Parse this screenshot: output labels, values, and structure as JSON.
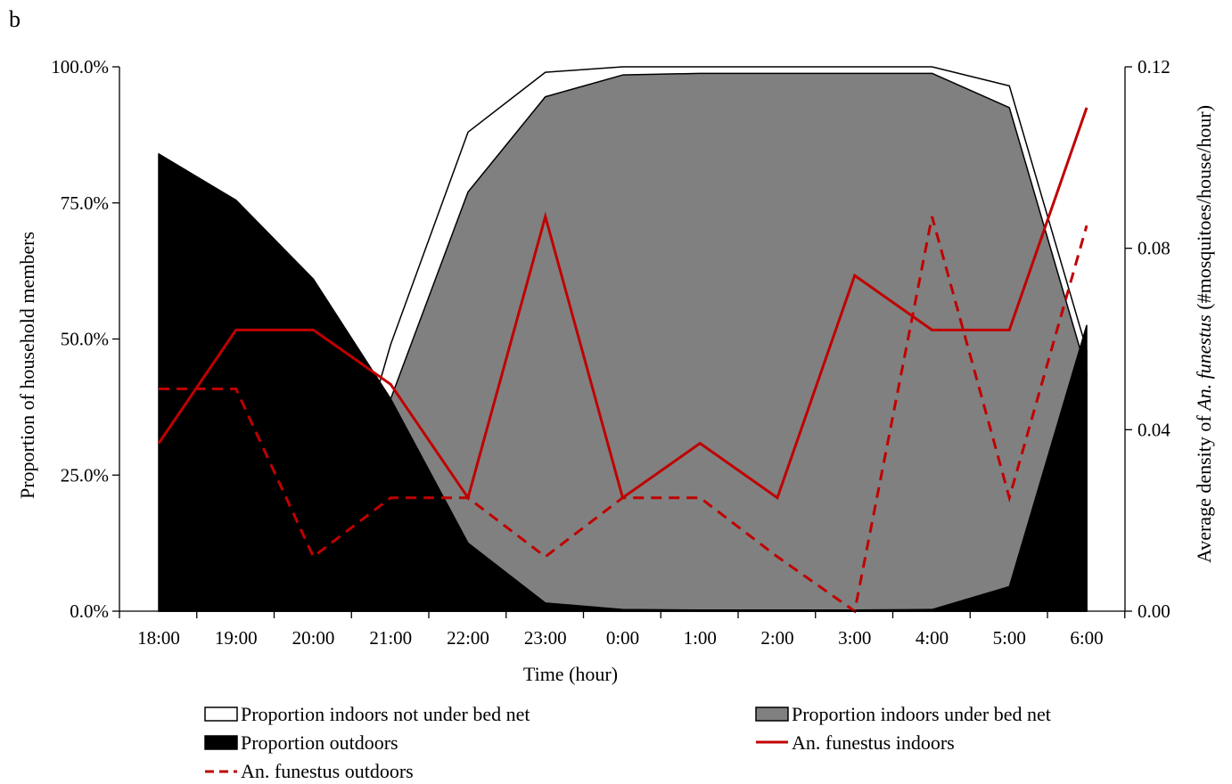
{
  "panel_label": "b",
  "chart_data": {
    "type": "area",
    "title": "",
    "xlabel": "Time (hour)",
    "ylabel": "Proportion of household members",
    "y2label_prefix": "Average  density of ",
    "y2label_italic": "An. funestus",
    "y2label_suffix": " (#mosquitoes/house/hour)",
    "categories": [
      "18:00",
      "19:00",
      "20:00",
      "21:00",
      "22:00",
      "23:00",
      "0:00",
      "1:00",
      "2:00",
      "3:00",
      "4:00",
      "5:00",
      "6:00"
    ],
    "ylim": [
      0,
      100
    ],
    "yticks": [
      "0.0%",
      "25.0%",
      "50.0%",
      "75.0%",
      "100.0%"
    ],
    "y2lim": [
      0,
      0.12
    ],
    "y2ticks": [
      "0.00",
      "0.04",
      "0.08",
      "0.12"
    ],
    "area_series": [
      {
        "name": "Proportion indoors not under bed net",
        "axis": "left",
        "color": "#ffffff",
        "stroke": "#000000",
        "values_top": [
          0,
          0,
          0,
          49,
          88,
          99,
          100,
          100,
          100,
          100,
          100,
          96.5,
          48
        ]
      },
      {
        "name": "Proportion indoors under bed net",
        "axis": "left",
        "color": "#808080",
        "stroke": "#000000",
        "values_top": [
          0,
          0,
          0,
          39,
          77,
          94.5,
          98.5,
          98.8,
          98.8,
          98.8,
          98.8,
          92.5,
          44
        ]
      },
      {
        "name": "Proportion outdoors",
        "axis": "left",
        "color": "#000000",
        "stroke": "#000000",
        "values_top": [
          84,
          75.5,
          61,
          39,
          12.5,
          1.5,
          0.3,
          0.2,
          0.2,
          0.2,
          0.3,
          4.5,
          52.5
        ]
      }
    ],
    "line_series": [
      {
        "name": "An. funestus indoors",
        "axis": "right",
        "color": "#c00000",
        "dash": "solid",
        "values": [
          0.037,
          0.062,
          0.062,
          0.05,
          0.025,
          0.087,
          0.025,
          0.037,
          0.025,
          0.074,
          0.062,
          0.062,
          0.111
        ]
      },
      {
        "name": "An. funestus outdoors",
        "axis": "right",
        "color": "#c00000",
        "dash": "dashed",
        "values": [
          0.049,
          0.049,
          0.012,
          0.025,
          0.025,
          0.012,
          0.025,
          0.025,
          0.012,
          0.0,
          0.087,
          0.025,
          0.085
        ]
      }
    ],
    "legend_placement": "bottom",
    "grid": false
  }
}
